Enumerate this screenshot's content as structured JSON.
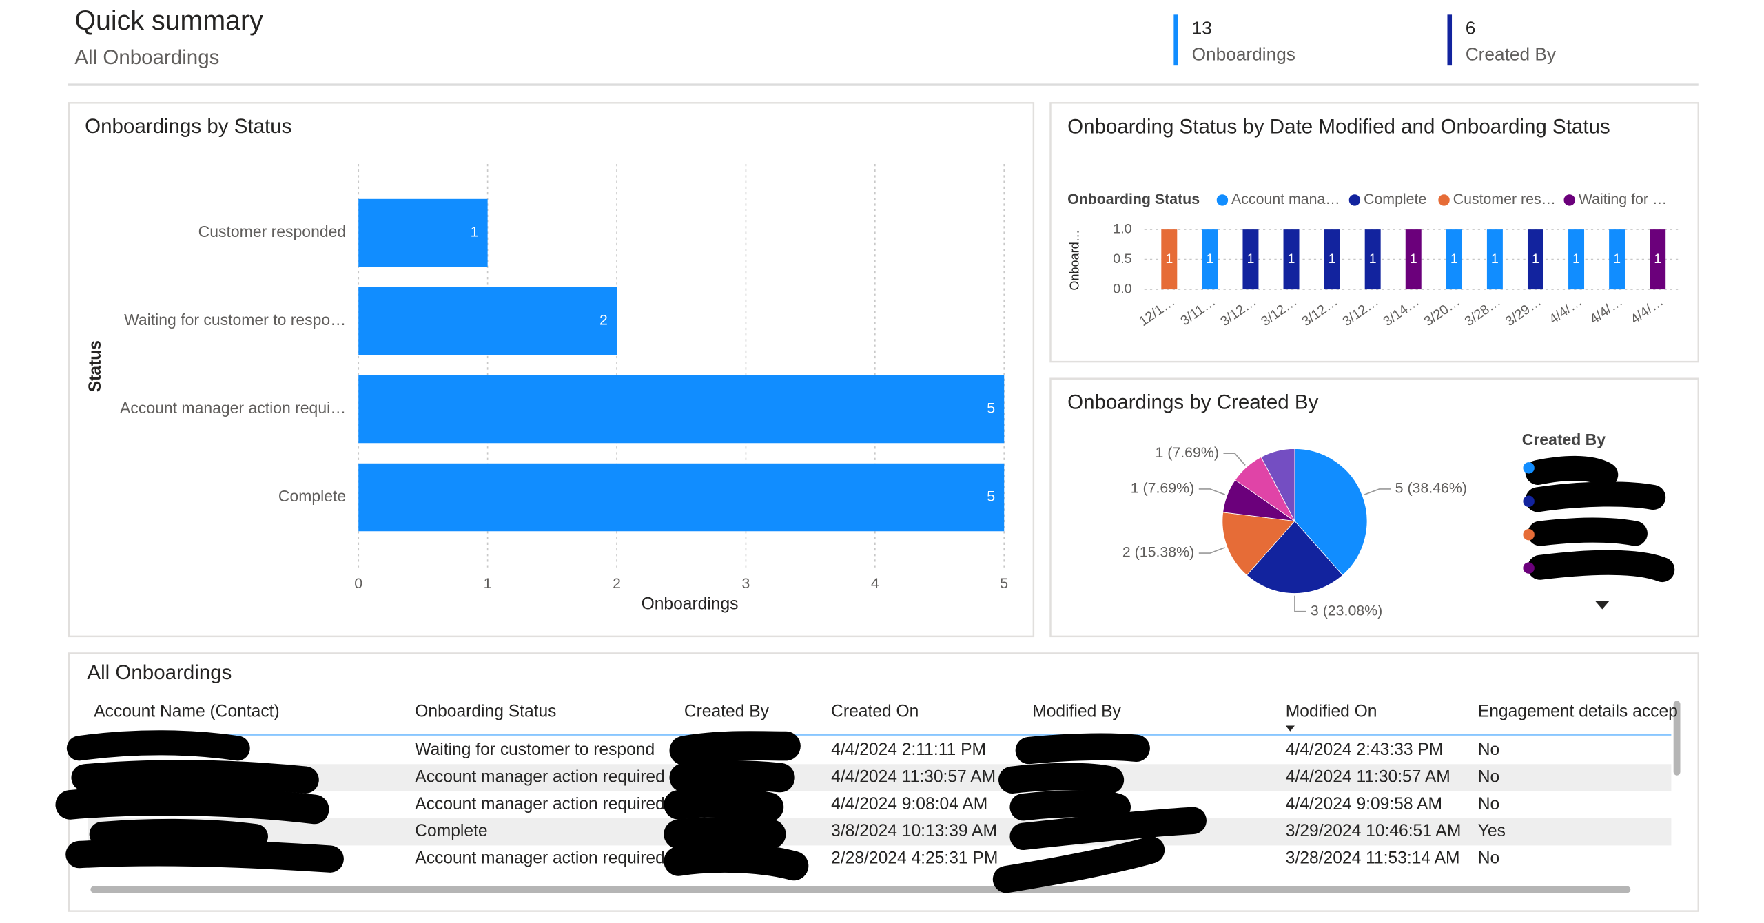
{
  "header": {
    "title": "Quick summary",
    "subtitle": "All Onboardings"
  },
  "cards": [
    {
      "value": 13,
      "label": "Onboardings",
      "color": "#118dff"
    },
    {
      "value": 6,
      "label": "Created By",
      "color": "#12239e"
    }
  ],
  "chart_data": [
    {
      "type": "hbar",
      "title": "Onboardings by Status",
      "categories": [
        "Customer responded",
        "Waiting for customer to respo…",
        "Account manager action requi…",
        "Complete"
      ],
      "values": [
        1,
        2,
        5,
        5
      ],
      "color": "#118dff",
      "x_label": "Onboardings",
      "y_label": "Status",
      "xlim": [
        0,
        5
      ],
      "xticks": [
        0,
        1,
        2,
        3,
        4,
        5
      ],
      "grid": true
    },
    {
      "type": "column",
      "title": "Onboarding Status by Date Modified and Onboarding Status",
      "legend_title": "Onboarding Status",
      "y_label": "Onboard…",
      "categories": [
        "12/1…",
        "3/11…",
        "3/12…",
        "3/12…",
        "3/12…",
        "3/12…",
        "3/14…",
        "3/20…",
        "3/28…",
        "3/29…",
        "4/4/…",
        "4/4/…",
        "4/4/…"
      ],
      "series": [
        {
          "name": "Account mana…",
          "color": "#118dff",
          "values": [
            null,
            1,
            null,
            null,
            null,
            null,
            null,
            1,
            1,
            null,
            1,
            1,
            null
          ]
        },
        {
          "name": "Complete",
          "color": "#12239e",
          "values": [
            null,
            null,
            1,
            1,
            1,
            1,
            null,
            null,
            null,
            1,
            null,
            null,
            null
          ]
        },
        {
          "name": "Customer res…",
          "color": "#e66c37",
          "values": [
            1,
            null,
            null,
            null,
            null,
            null,
            null,
            null,
            null,
            null,
            null,
            null,
            null
          ]
        },
        {
          "name": "Waiting for …",
          "color": "#6b007b",
          "values": [
            null,
            null,
            null,
            null,
            null,
            null,
            1,
            null,
            null,
            null,
            null,
            null,
            1
          ]
        }
      ],
      "ylim": [
        0,
        1
      ],
      "yticks": [
        {
          "value": 0,
          "label": "0.0"
        },
        {
          "value": 0.5,
          "label": "0.5"
        },
        {
          "value": 1,
          "label": "1.0"
        }
      ],
      "grid": true
    },
    {
      "type": "pie",
      "title": "Onboardings by Created By",
      "legend_title": "Created By",
      "values": [
        5,
        3,
        2,
        1,
        1,
        1
      ],
      "value_labels": [
        "5 (38.46%)",
        "3 (23.08%)",
        "2 (15.38%)",
        "1 (7.69%)",
        "1 (7.69%)",
        null
      ],
      "colors": [
        "#118dff",
        "#12239e",
        "#e66c37",
        "#6b007b",
        "#e044a7",
        "#744ec2"
      ]
    }
  ],
  "table": {
    "title": "All Onboardings",
    "columns": [
      "Account Name (Contact)",
      "Onboarding Status",
      "Created By",
      "Created On",
      "Modified By",
      "Modified On",
      "Engagement details accep"
    ],
    "rows": [
      {
        "status": "Waiting for customer to respond",
        "created_on": "4/4/2024 2:11:11 PM",
        "modified_on": "4/4/2024 2:43:33 PM",
        "engagement": "No"
      },
      {
        "status": "Account manager action required",
        "created_on": "4/4/2024 11:30:57 AM",
        "modified_on": "4/4/2024 11:30:57 AM",
        "engagement": "No"
      },
      {
        "status": "Account manager action required",
        "created_on": "4/4/2024 9:08:04 AM",
        "modified_on": "4/4/2024 9:09:58 AM",
        "engagement": "No"
      },
      {
        "status": "Complete",
        "created_on": "3/8/2024 10:13:39 AM",
        "modified_on": "3/29/2024 10:46:51 AM",
        "engagement": "Yes"
      },
      {
        "status": "Account manager action required",
        "created_on": "2/28/2024 4:25:31 PM",
        "modified_on": "3/28/2024 11:53:14 AM",
        "engagement": "No"
      }
    ]
  }
}
